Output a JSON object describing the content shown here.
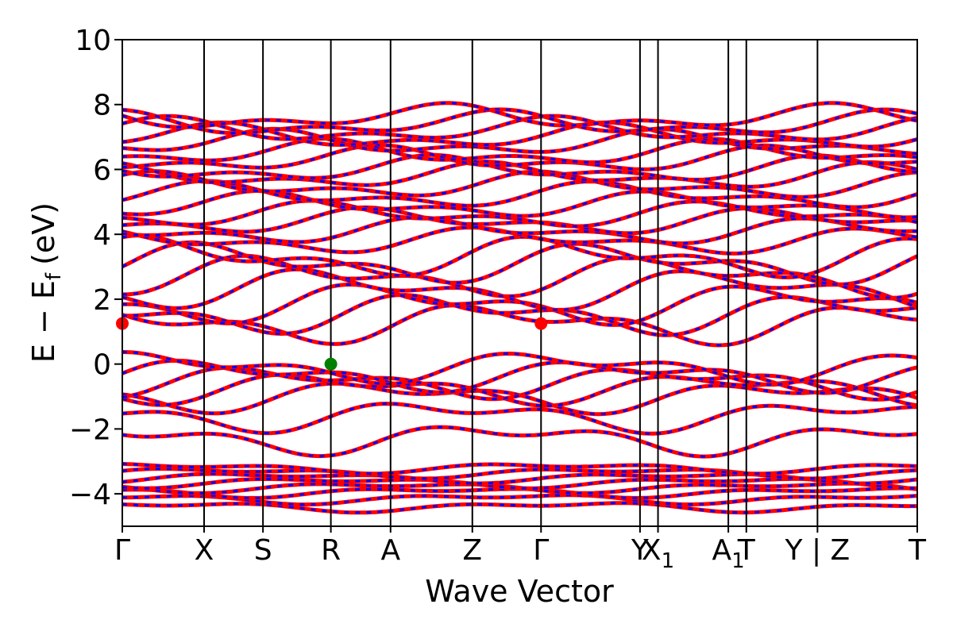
{
  "chart_data": {
    "type": "line",
    "xlabel": "Wave Vector",
    "ylabel": "E − E",
    "ylabel_sub": "f",
    "ylabel_unit": "(eV)",
    "ylim": [
      -5,
      10
    ],
    "yticks": [
      -4,
      -2,
      0,
      2,
      4,
      6,
      8,
      10
    ],
    "ytick_labels": [
      "−4",
      "−2",
      "0",
      "2",
      "4",
      "6",
      "8",
      "10"
    ],
    "kpoints": [
      {
        "label": "Γ",
        "sub": "",
        "x": 0.0
      },
      {
        "label": "X",
        "sub": "",
        "x": 1.0
      },
      {
        "label": "S",
        "sub": "",
        "x": 1.72
      },
      {
        "label": "R",
        "sub": "",
        "x": 2.55
      },
      {
        "label": "A",
        "sub": "",
        "x": 3.28
      },
      {
        "label": "Z",
        "sub": "",
        "x": 4.28
      },
      {
        "label": "Γ",
        "sub": "",
        "x": 5.12
      },
      {
        "label": "Y",
        "sub": "",
        "x": 6.33
      },
      {
        "label": "X",
        "sub": "1",
        "x": 6.55
      },
      {
        "label": "A",
        "sub": "1",
        "x": 7.41
      },
      {
        "label": "T",
        "sub": "",
        "x": 7.63
      },
      {
        "label": "Y | Z",
        "sub": "",
        "x": 8.5
      },
      {
        "label": "T",
        "sub": "",
        "x": 9.72
      }
    ],
    "band_colors": {
      "primary": "#ff0000",
      "overlay": "#0000ff"
    },
    "band_groups": {
      "deep_valence": [
        -4.4,
        -4.15,
        -3.95,
        -3.8,
        -3.65,
        -3.5,
        -3.35,
        -3.2
      ],
      "valence": [
        -2.3,
        -1.6,
        -1.0,
        -0.75,
        -0.55,
        -0.35,
        -0.1
      ],
      "conduction_low": [
        1.25,
        1.55,
        1.85,
        2.3,
        2.7,
        3.1,
        3.3
      ],
      "conduction_high": [
        3.8,
        4.1,
        4.4,
        4.6,
        4.9,
        5.2,
        5.5,
        5.8,
        6.0,
        6.3,
        6.5,
        6.8,
        7.0,
        7.2,
        7.4,
        7.6
      ]
    },
    "markers": [
      {
        "name": "cbm-marker-gamma1",
        "x": 0.0,
        "y": 1.25,
        "color": "#ff0000"
      },
      {
        "name": "cbm-marker-gamma2",
        "x": 5.12,
        "y": 1.25,
        "color": "#ff0000"
      },
      {
        "name": "vbm-marker-r",
        "x": 2.55,
        "y": 0.0,
        "color": "#008000"
      }
    ]
  }
}
